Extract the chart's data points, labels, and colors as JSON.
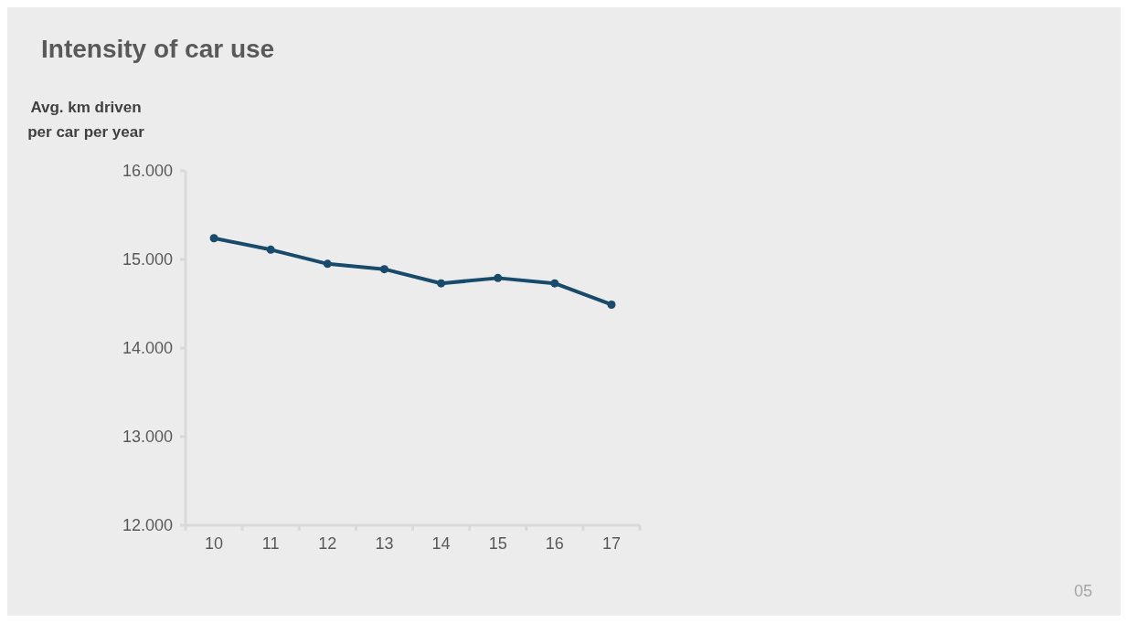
{
  "chart_data": {
    "type": "line",
    "title": "Intensity of car use",
    "ylabel": "Avg. km driven\nper car per year",
    "categories": [
      "10",
      "11",
      "12",
      "13",
      "14",
      "15",
      "16",
      "17"
    ],
    "series": [
      {
        "color": "#174a6b",
        "values": [
          15240,
          15110,
          14950,
          14890,
          14730,
          14790,
          14730,
          14490
        ]
      }
    ],
    "ylim": [
      12000,
      16000
    ],
    "yticks": [
      {
        "value": 12000,
        "label": "12.000"
      },
      {
        "value": 13000,
        "label": "13.000"
      },
      {
        "value": 14000,
        "label": "14.000"
      },
      {
        "value": 15000,
        "label": "15.000"
      },
      {
        "value": 16000,
        "label": "16.000"
      }
    ],
    "grid": false,
    "marker": "circle",
    "line_style": "solid",
    "annotations": [
      "05"
    ]
  }
}
